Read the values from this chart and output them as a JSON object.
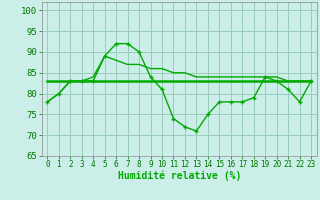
{
  "xlabel": "Humidité relative (%)",
  "xlim": [
    -0.5,
    23.5
  ],
  "ylim": [
    65,
    102
  ],
  "yticks": [
    65,
    70,
    75,
    80,
    85,
    90,
    95,
    100
  ],
  "xticks": [
    0,
    1,
    2,
    3,
    4,
    5,
    6,
    7,
    8,
    9,
    10,
    11,
    12,
    13,
    14,
    15,
    16,
    17,
    18,
    19,
    20,
    21,
    22,
    23
  ],
  "bg_color": "#cceee8",
  "grid_color": "#99ccbb",
  "line_color": "#00aa00",
  "line1": [
    78,
    80,
    83,
    83,
    83,
    89,
    92,
    92,
    90,
    84,
    81,
    74,
    72,
    71,
    75,
    78,
    78,
    78,
    79,
    84,
    83,
    81,
    78,
    83
  ],
  "line2": [
    78,
    80,
    83,
    83,
    84,
    89,
    88,
    87,
    87,
    86,
    86,
    85,
    85,
    84,
    84,
    84,
    84,
    84,
    84,
    84,
    84,
    83,
    83,
    83
  ],
  "line3": [
    83,
    83,
    83,
    83,
    83,
    83,
    83,
    83,
    83,
    83,
    83,
    83,
    83,
    83,
    83,
    83,
    83,
    83,
    83,
    83,
    83,
    83,
    83,
    83
  ]
}
